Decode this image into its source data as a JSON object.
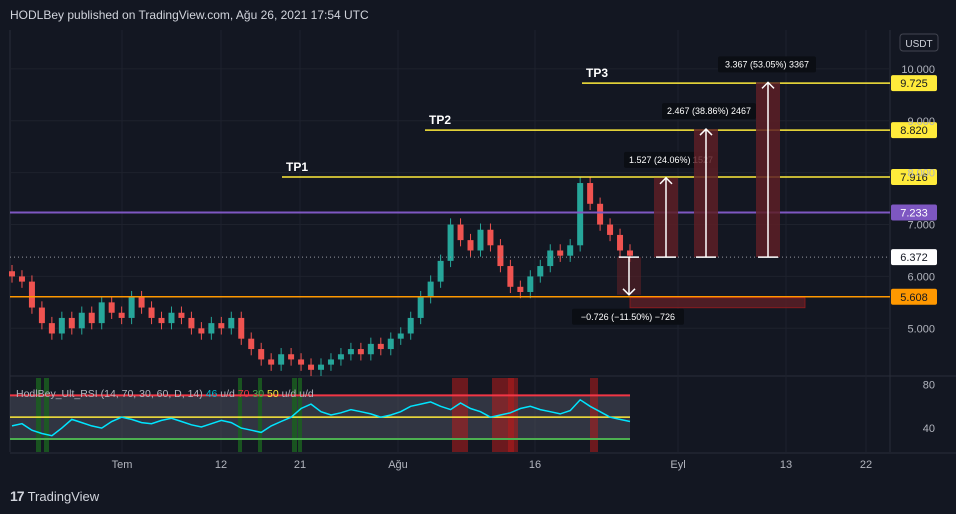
{
  "header": {
    "published": "HODLBey published on TradingView.com, Ağu 26, 2021 17:54 UTC"
  },
  "footer": {
    "logo_icon": "tradingview-logo-icon",
    "brand": "TradingView"
  },
  "currency_badge": "USDT",
  "chart_data": [
    {
      "type": "candlestick",
      "price_axis": {
        "ticks": [
          "10.000",
          "9.000",
          "8.000",
          "7.000",
          "6.000",
          "5.000"
        ],
        "tick_values": [
          10,
          9,
          8,
          7,
          6,
          5
        ],
        "ylim": [
          4.1,
          10.75
        ]
      },
      "time_axis": {
        "ticks": [
          "Tem",
          "12",
          "21",
          "Ağu",
          "16",
          "Eyl",
          "13",
          "22"
        ]
      },
      "price_labels": [
        {
          "text": "9.725",
          "value": 9.725,
          "color": "#ffeb3b"
        },
        {
          "text": "8.820",
          "value": 8.82,
          "color": "#ffeb3b"
        },
        {
          "text": "7.916",
          "value": 7.916,
          "color": "#ffeb3b"
        },
        {
          "text": "7.233",
          "value": 7.233,
          "color": "#7e57c2"
        },
        {
          "text": "6.372",
          "value": 6.372,
          "color": "#ffffff"
        },
        {
          "text": "5.608",
          "value": 5.608,
          "color": "#ff9800"
        }
      ],
      "targets": [
        {
          "label": "TP1",
          "value": 7.916
        },
        {
          "label": "TP2",
          "value": 8.82
        },
        {
          "label": "TP3",
          "value": 9.725
        }
      ],
      "support_line": 5.608,
      "resistance_line": 7.233,
      "current_price": 6.372,
      "measurements": [
        {
          "text": "1.527 (24.06%) 1527",
          "from": 6.372,
          "to": 7.9
        },
        {
          "text": "2.467 (38.86%) 2467",
          "from": 6.372,
          "to": 8.84
        },
        {
          "text": "3.367 (53.05%) 3367",
          "from": 6.372,
          "to": 9.74
        },
        {
          "text": "−0.726 (−11.50%) −726",
          "from": 6.372,
          "to": 5.646
        }
      ],
      "closes": [
        6.0,
        5.9,
        5.4,
        5.1,
        4.9,
        5.2,
        5.0,
        5.3,
        5.1,
        5.5,
        5.3,
        5.2,
        5.6,
        5.4,
        5.2,
        5.1,
        5.3,
        5.2,
        5.0,
        4.9,
        5.1,
        5.0,
        5.2,
        4.8,
        4.6,
        4.4,
        4.3,
        4.5,
        4.4,
        4.3,
        4.2,
        4.3,
        4.4,
        4.5,
        4.6,
        4.5,
        4.7,
        4.6,
        4.8,
        4.9,
        5.2,
        5.6,
        5.9,
        6.3,
        7.0,
        6.7,
        6.5,
        6.9,
        6.6,
        6.2,
        5.8,
        5.7,
        6.0,
        6.2,
        6.5,
        6.4,
        6.6,
        7.8,
        7.4,
        7.0,
        6.8,
        6.5,
        6.4
      ]
    },
    {
      "type": "line",
      "title": "HodlBey_Ult_RSI (14, 70, 30, 60, D, 14)",
      "legend_values": [
        {
          "text": "46",
          "color": "#00bcd4"
        },
        {
          "text": "u/d",
          "color": "#b2b5be"
        },
        {
          "text": "70",
          "color": "#f23645"
        },
        {
          "text": "30",
          "color": "#4caf50"
        },
        {
          "text": "50",
          "color": "#ffeb3b"
        },
        {
          "text": "u/d",
          "color": "#b2b5be"
        },
        {
          "text": "u/d",
          "color": "#b2b5be"
        }
      ],
      "y_ticks": [
        "80",
        "40"
      ],
      "tick_values": [
        80,
        40
      ],
      "ylim": [
        18,
        86
      ],
      "bands": {
        "upper": 70,
        "mid": 50,
        "lower": 30
      },
      "values": [
        42,
        44,
        38,
        35,
        33,
        40,
        48,
        45,
        42,
        40,
        46,
        50,
        48,
        45,
        44,
        47,
        49,
        46,
        43,
        41,
        44,
        47,
        45,
        40,
        38,
        36,
        42,
        46,
        50,
        58,
        62,
        55,
        52,
        54,
        57,
        55,
        53,
        50,
        52,
        55,
        60,
        62,
        64,
        60,
        57,
        63,
        58,
        55,
        50,
        52,
        54,
        58,
        60,
        57,
        55,
        53,
        56,
        66,
        60,
        55,
        50,
        48,
        46
      ]
    }
  ]
}
